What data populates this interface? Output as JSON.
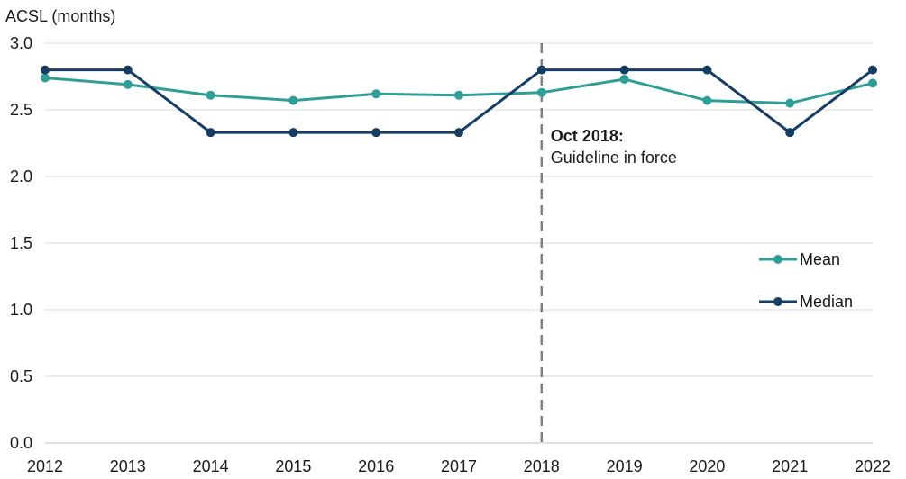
{
  "chart_data": {
    "type": "line",
    "ylabel": "ACSL (months)",
    "xlabel": "",
    "x": [
      "2012",
      "2013",
      "2014",
      "2015",
      "2016",
      "2017",
      "2018",
      "2019",
      "2020",
      "2021",
      "2022"
    ],
    "ylim": [
      0,
      3.0
    ],
    "yticks": [
      "0.0",
      "0.5",
      "1.0",
      "1.5",
      "2.0",
      "2.5",
      "3.0"
    ],
    "grid": true,
    "legend_position": "right",
    "series": [
      {
        "name": "Mean",
        "color": "#2e9e96",
        "values": [
          2.74,
          2.69,
          2.61,
          2.57,
          2.62,
          2.61,
          2.63,
          2.73,
          2.57,
          2.55,
          2.7
        ]
      },
      {
        "name": "Median",
        "color": "#163d63",
        "values": [
          2.8,
          2.8,
          2.33,
          2.33,
          2.33,
          2.33,
          2.8,
          2.8,
          2.8,
          2.33,
          2.8
        ]
      }
    ],
    "annotation": {
      "x": "2018",
      "title": "Oct 2018:",
      "text": "Guideline in force",
      "line_color": "#808080"
    }
  }
}
